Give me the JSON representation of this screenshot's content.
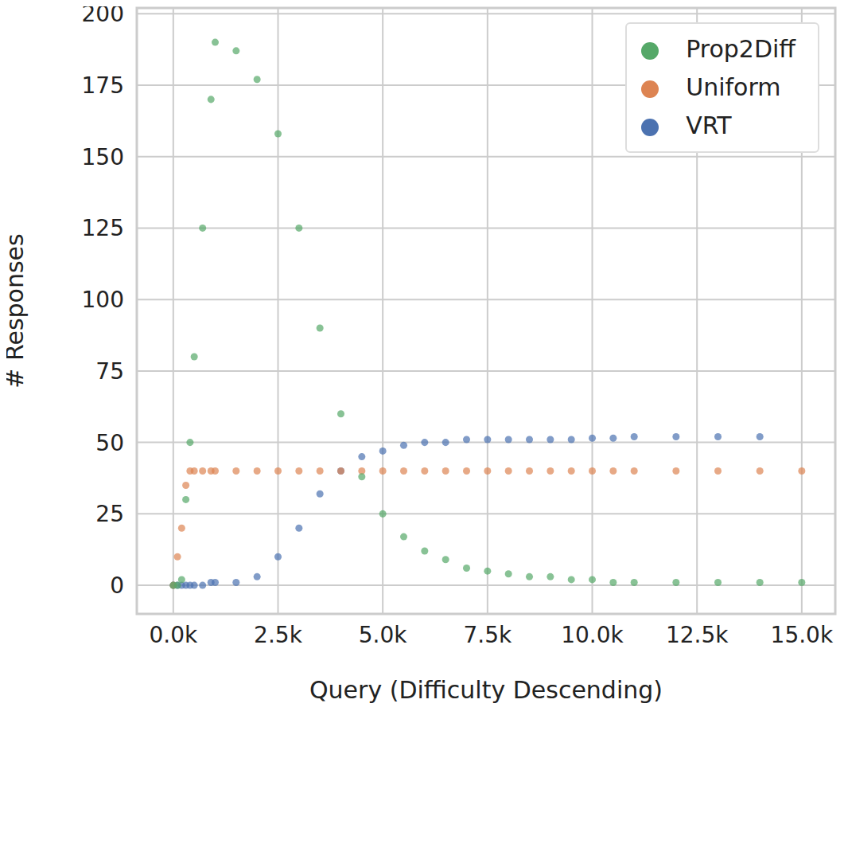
{
  "chart_data": {
    "type": "scatter",
    "x_label": "Query (Difficulty Descending)",
    "y_label": "# Responses",
    "x": [
      0,
      100,
      200,
      300,
      400,
      500,
      700,
      900,
      1000,
      1500,
      2000,
      2500,
      3000,
      3500,
      4000,
      4500,
      5000,
      5500,
      6000,
      6500,
      7000,
      7500,
      8000,
      8500,
      9000,
      9500,
      10000,
      10500,
      11000,
      12000,
      13000,
      14000,
      15000
    ],
    "series": [
      {
        "name": "VRT",
        "color": "#4c72b0",
        "values": [
          0,
          0,
          0,
          0,
          0,
          0,
          0,
          1,
          1,
          1,
          3,
          10,
          20,
          32,
          40,
          45,
          47,
          49,
          50,
          50,
          51,
          51,
          51,
          51,
          51,
          51,
          51.5,
          51.5,
          52,
          52,
          52,
          52,
          null
        ]
      },
      {
        "name": "Uniform",
        "color": "#dd8452",
        "values": [
          0,
          10,
          20,
          35,
          40,
          40,
          40,
          40,
          40,
          40,
          40,
          40,
          40,
          40,
          40,
          40,
          40,
          40,
          40,
          40,
          40,
          40,
          40,
          40,
          40,
          40,
          40,
          40,
          40,
          40,
          40,
          40,
          40
        ]
      },
      {
        "name": "Prop2Diff",
        "color": "#55a868",
        "values": [
          0,
          0,
          2,
          30,
          50,
          80,
          125,
          170,
          190,
          187,
          177,
          158,
          125,
          90,
          60,
          38,
          25,
          17,
          12,
          9,
          6,
          5,
          4,
          3,
          3,
          2,
          2,
          1,
          1,
          1,
          1,
          1,
          1
        ]
      }
    ],
    "xlim": [
      -870,
      15800
    ],
    "ylim": [
      -10,
      202
    ],
    "xticks": [
      {
        "value": 0,
        "label": "0.0k"
      },
      {
        "value": 2500,
        "label": "2.5k"
      },
      {
        "value": 5000,
        "label": "5.0k"
      },
      {
        "value": 7500,
        "label": "7.5k"
      },
      {
        "value": 10000,
        "label": "10.0k"
      },
      {
        "value": 12500,
        "label": "12.5k"
      },
      {
        "value": 15000,
        "label": "15.0k"
      }
    ],
    "yticks": [
      0,
      25,
      50,
      75,
      100,
      125,
      150,
      175,
      200
    ],
    "grid": true,
    "legend": "upper right",
    "marker": "circle"
  }
}
